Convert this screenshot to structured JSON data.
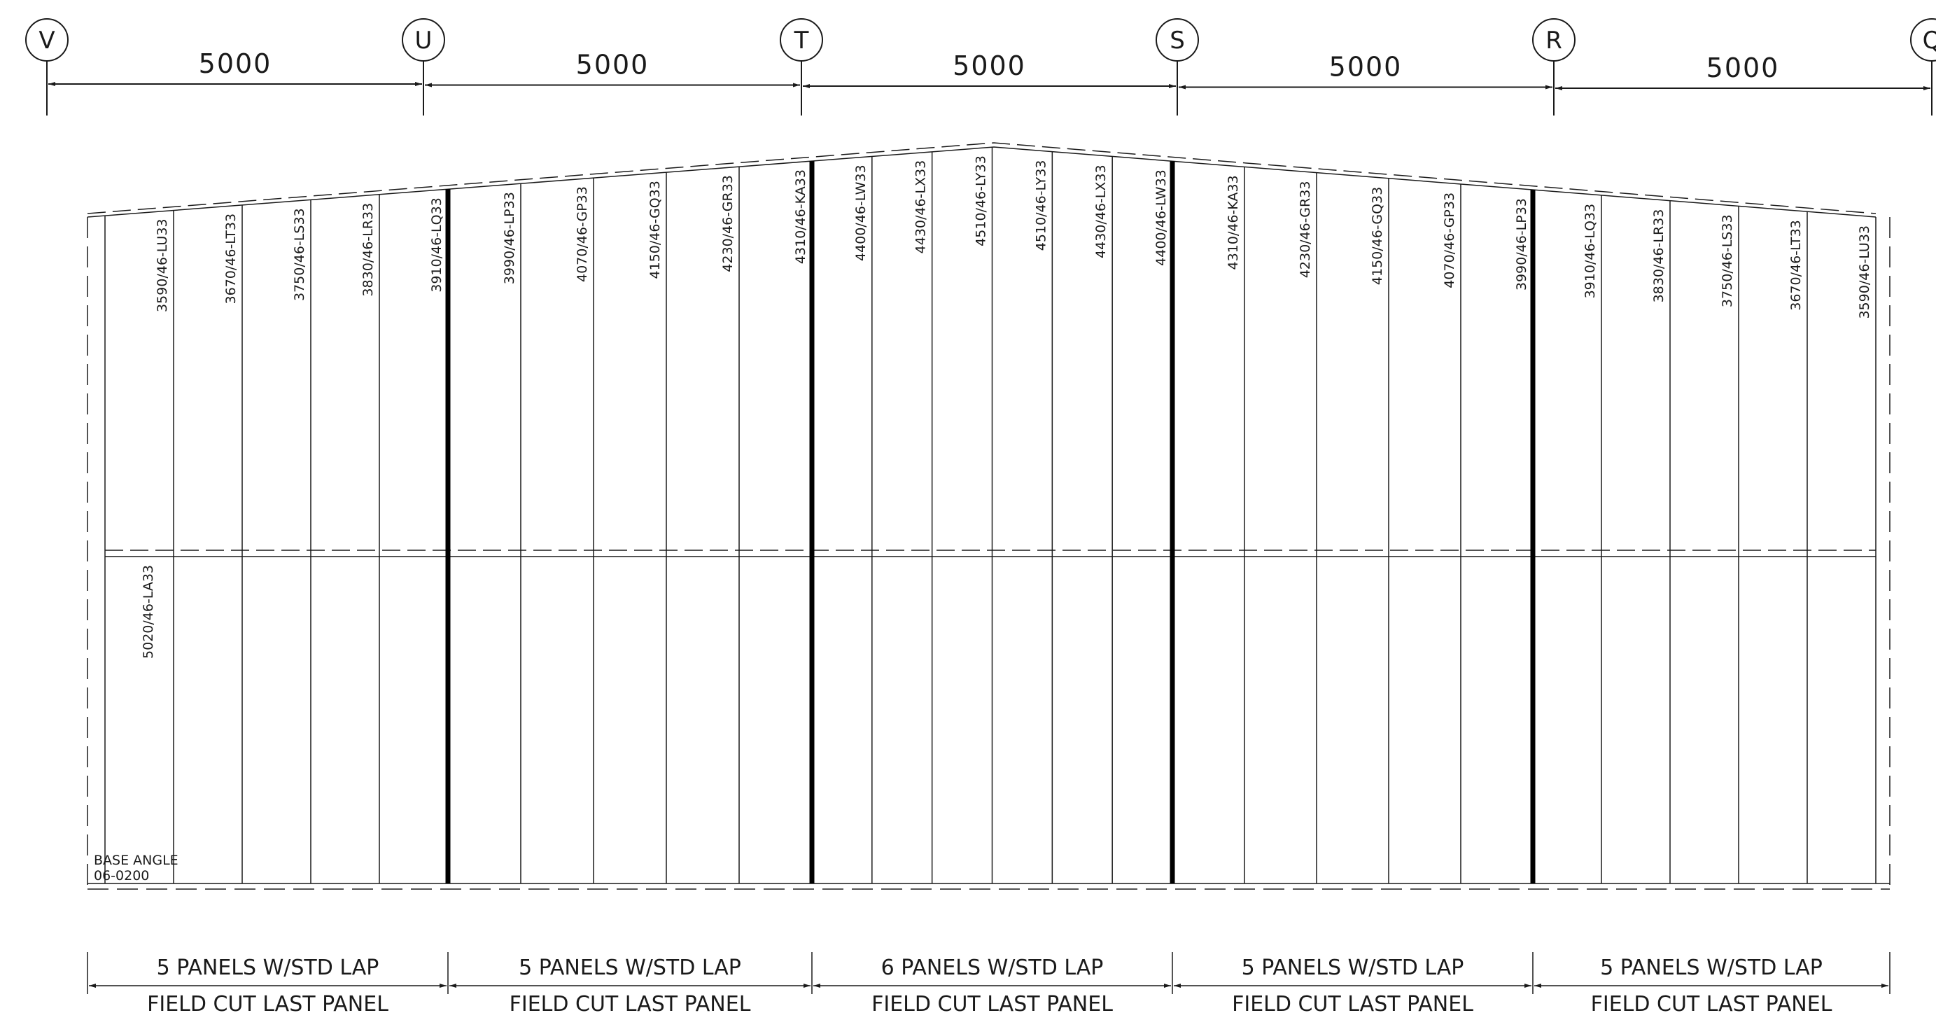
{
  "grid_lines": [
    "V",
    "U",
    "T",
    "S",
    "R",
    "Q"
  ],
  "bay_dimensions": [
    "5000",
    "5000",
    "5000",
    "5000",
    "5000"
  ],
  "panels": {
    "upper": [
      [
        "3590/46-LU33",
        "3670/46-LT33",
        "3750/46-LS33",
        "3830/46-LR33",
        "3910/46-LQ33"
      ],
      [
        "3990/46-LP33",
        "4070/46-GP33",
        "4150/46-GQ33",
        "4230/46-GR33",
        "4310/46-KA33"
      ],
      [
        "4400/46-LW33",
        "4430/46-LX33",
        "4510/46-LY33",
        "4510/46-LY33",
        "4430/46-LX33",
        "4400/46-LW33"
      ],
      [
        "4310/46-KA33",
        "4230/46-GR33",
        "4150/46-GQ33",
        "4070/46-GP33",
        "3990/46-LP33"
      ],
      [
        "3910/46-LQ33",
        "3830/46-LR33",
        "3750/46-LS33",
        "3670/46-LT33",
        "3590/46-LU33"
      ]
    ],
    "lower_label": "5020/46-LA33"
  },
  "base_angle": {
    "line1": "BASE ANGLE",
    "line2": "06-0200"
  },
  "bay_notes": [
    {
      "line1": "5 PANELS W/STD LAP",
      "line2": "FIELD CUT LAST PANEL"
    },
    {
      "line1": "5 PANELS W/STD LAP",
      "line2": "FIELD CUT LAST PANEL"
    },
    {
      "line1": "6 PANELS W/STD LAP",
      "line2": "FIELD CUT LAST PANEL"
    },
    {
      "line1": "5 PANELS W/STD LAP",
      "line2": "FIELD CUT LAST PANEL"
    },
    {
      "line1": "5 PANELS W/STD LAP",
      "line2": "FIELD CUT LAST PANEL"
    }
  ]
}
